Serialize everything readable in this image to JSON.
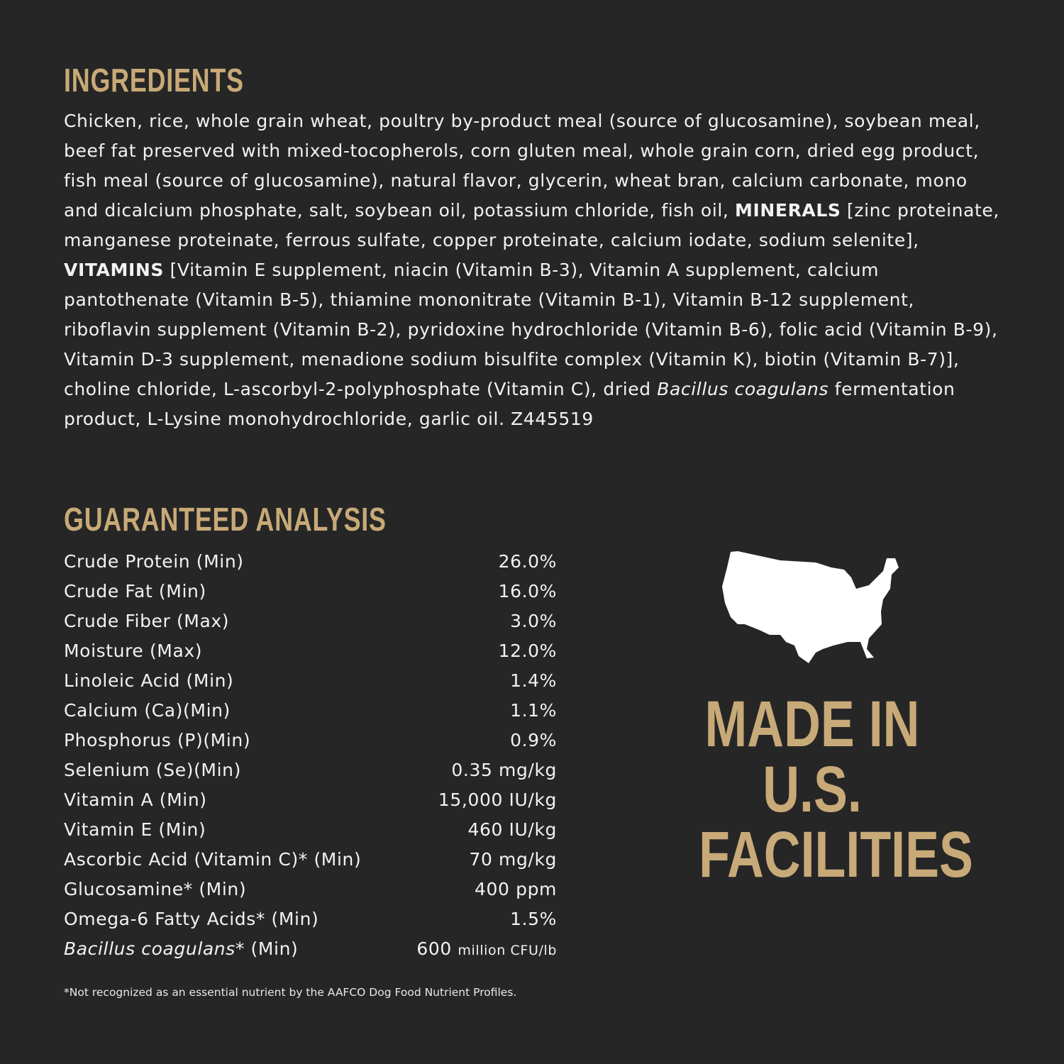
{
  "ingredients": {
    "title": "INGREDIENTS",
    "segments": [
      {
        "text": "Chicken, rice, whole grain wheat, poultry by-product meal (source of glucosamine), soybean meal, beef fat preserved with mixed-tocopherols, corn gluten meal, whole grain corn, dried egg product, fish meal (source of glucosamine), natural flavor, glycerin, wheat bran, calcium carbonate, mono and dicalcium phosphate, salt, soybean oil, potassium chloride, fish oil, ",
        "style": "normal"
      },
      {
        "text": "MINERALS",
        "style": "bold"
      },
      {
        "text": " [zinc proteinate, manganese proteinate, ferrous sulfate, copper proteinate, calcium iodate, sodium selenite], ",
        "style": "normal"
      },
      {
        "text": "VITAMINS",
        "style": "bold"
      },
      {
        "text": " [Vitamin E supplement, niacin (Vitamin B-3), Vitamin A supplement, calcium pantothenate (Vitamin B-5), thiamine mononitrate (Vitamin B-1), Vitamin B-12 supplement, riboflavin supplement (Vitamin B-2), pyridoxine hydrochloride (Vitamin B-6), folic acid (Vitamin B-9), Vitamin D-3 supplement, menadione sodium bisulfite complex (Vitamin K), biotin (Vitamin B-7)], choline chloride, L-ascorbyl-2-polyphosphate (Vitamin C), dried ",
        "style": "normal"
      },
      {
        "text": "Bacillus coagulans",
        "style": "italic"
      },
      {
        "text": " fermentation product, L-Lysine monohydrochloride, garlic oil. Z445519",
        "style": "normal"
      }
    ]
  },
  "analysis": {
    "title": "GUARANTEED ANALYSIS",
    "rows": [
      {
        "label": "Crude Protein (Min)",
        "value": "26.0%"
      },
      {
        "label": "Crude Fat (Min)",
        "value": "16.0%"
      },
      {
        "label": "Crude Fiber (Max)",
        "value": "3.0%"
      },
      {
        "label": "Moisture (Max)",
        "value": "12.0%"
      },
      {
        "label": "Linoleic Acid (Min)",
        "value": "1.4%"
      },
      {
        "label": "Calcium (Ca)(Min)",
        "value": "1.1%"
      },
      {
        "label": "Phosphorus (P)(Min)",
        "value": "0.9%"
      },
      {
        "label": "Selenium (Se)(Min)",
        "value": "0.35 mg/kg"
      },
      {
        "label": "Vitamin A (Min)",
        "value": "15,000 IU/kg"
      },
      {
        "label": "Vitamin E (Min)",
        "value": "460 IU/kg"
      },
      {
        "label": "Ascorbic Acid (Vitamin C)* (Min)",
        "value": "70 mg/kg"
      },
      {
        "label": "Glucosamine* (Min)",
        "value": "400 ppm"
      },
      {
        "label": "Omega-6 Fatty Acids* (Min)",
        "value": "1.5%"
      }
    ],
    "last_row": {
      "label_italic": "Bacillus coagulans",
      "label_rest": "* (Min)",
      "value": "600",
      "unit": "million CFU/lb"
    },
    "footnote": "*Not recognized as an essential nutrient by the AAFCO Dog Food Nutrient Profiles."
  },
  "badge": {
    "icon": "usa-map-icon",
    "lines": [
      "MADE IN",
      "U.S.",
      "FACILITIES"
    ]
  },
  "colors": {
    "background": "#262626",
    "accent": "#c8aa78",
    "text": "#f2f2f2"
  }
}
